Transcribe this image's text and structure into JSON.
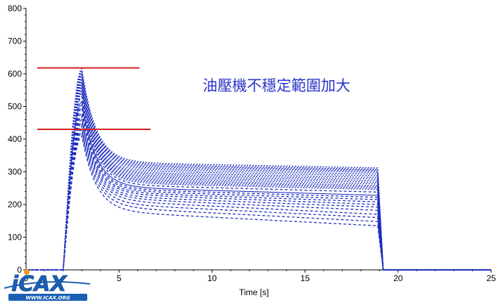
{
  "chart_data": {
    "type": "line",
    "title": "",
    "xlabel": "Time [s]",
    "ylabel": "",
    "xlim": [
      0,
      25
    ],
    "ylim": [
      0,
      800
    ],
    "xticks": [
      0,
      5,
      10,
      15,
      20,
      25
    ],
    "yticks": [
      0,
      100,
      200,
      300,
      400,
      500,
      600,
      700,
      800
    ],
    "grid": false,
    "legend": "none",
    "annotation": "油壓機不穩定範圍加大",
    "reference_lines": [
      {
        "x": [
          0.6,
          6.1
        ],
        "y": 618,
        "color": "#d42020"
      },
      {
        "x": [
          0.6,
          6.7
        ],
        "y": 430,
        "color": "#d42020"
      }
    ],
    "curve_params": {
      "t_start": 2.0,
      "peak_time": 3.0,
      "end_time": 18.9,
      "drop_time": 19.2,
      "t_end": 25
    },
    "series": [
      {
        "style": "dotted",
        "peak": 615,
        "plateau_start": 330,
        "plateau_end": 312
      },
      {
        "style": "dotted",
        "peak": 610,
        "plateau_start": 326,
        "plateau_end": 308
      },
      {
        "style": "dotted",
        "peak": 605,
        "plateau_start": 322,
        "plateau_end": 305
      },
      {
        "style": "dotted",
        "peak": 600,
        "plateau_start": 318,
        "plateau_end": 302
      },
      {
        "style": "dotted",
        "peak": 595,
        "plateau_start": 314,
        "plateau_end": 298
      },
      {
        "style": "dotted",
        "peak": 590,
        "plateau_start": 310,
        "plateau_end": 293
      },
      {
        "style": "dotted",
        "peak": 585,
        "plateau_start": 305,
        "plateau_end": 288
      },
      {
        "style": "dotted",
        "peak": 580,
        "plateau_start": 300,
        "plateau_end": 283
      },
      {
        "style": "dotted",
        "peak": 575,
        "plateau_start": 296,
        "plateau_end": 278
      },
      {
        "style": "dotted",
        "peak": 570,
        "plateau_start": 292,
        "plateau_end": 273
      },
      {
        "style": "dotted",
        "peak": 565,
        "plateau_start": 288,
        "plateau_end": 268
      },
      {
        "style": "dotted",
        "peak": 560,
        "plateau_start": 284,
        "plateau_end": 263
      },
      {
        "style": "dotted",
        "peak": 555,
        "plateau_start": 280,
        "plateau_end": 258
      },
      {
        "style": "dotted",
        "peak": 550,
        "plateau_start": 276,
        "plateau_end": 254
      },
      {
        "style": "dotted",
        "peak": 545,
        "plateau_start": 272,
        "plateau_end": 250
      },
      {
        "style": "dotted",
        "peak": 540,
        "plateau_start": 268,
        "plateau_end": 246
      },
      {
        "style": "dashed",
        "peak": 530,
        "plateau_start": 262,
        "plateau_end": 238
      },
      {
        "style": "solid",
        "peak": 515,
        "plateau_start": 255,
        "plateau_end": 228
      },
      {
        "style": "dashed",
        "peak": 505,
        "plateau_start": 250,
        "plateau_end": 222
      },
      {
        "style": "dashed",
        "peak": 495,
        "plateau_start": 245,
        "plateau_end": 215
      },
      {
        "style": "dashed",
        "peak": 480,
        "plateau_start": 240,
        "plateau_end": 208
      },
      {
        "style": "dashed",
        "peak": 470,
        "plateau_start": 235,
        "plateau_end": 200
      },
      {
        "style": "dashed",
        "peak": 460,
        "plateau_start": 228,
        "plateau_end": 192
      },
      {
        "style": "dashed",
        "peak": 450,
        "plateau_start": 222,
        "plateau_end": 182
      },
      {
        "style": "dashed",
        "peak": 440,
        "plateau_start": 215,
        "plateau_end": 170
      },
      {
        "style": "dashed",
        "peak": 430,
        "plateau_start": 205,
        "plateau_end": 160
      },
      {
        "style": "dashed",
        "peak": 420,
        "plateau_start": 195,
        "plateau_end": 148
      },
      {
        "style": "dashed",
        "peak": 410,
        "plateau_start": 182,
        "plateau_end": 135
      }
    ]
  },
  "logo": {
    "text": "iCAX",
    "subtext": "WWW.ICAX.ORG",
    "primary_color": "#1a5fb4",
    "accent_color": "#e8a020"
  },
  "colors": {
    "curve": "#1f2fbf",
    "reference_line": "#d42020",
    "annotation": "#2a33c8",
    "axis": "#000000"
  }
}
